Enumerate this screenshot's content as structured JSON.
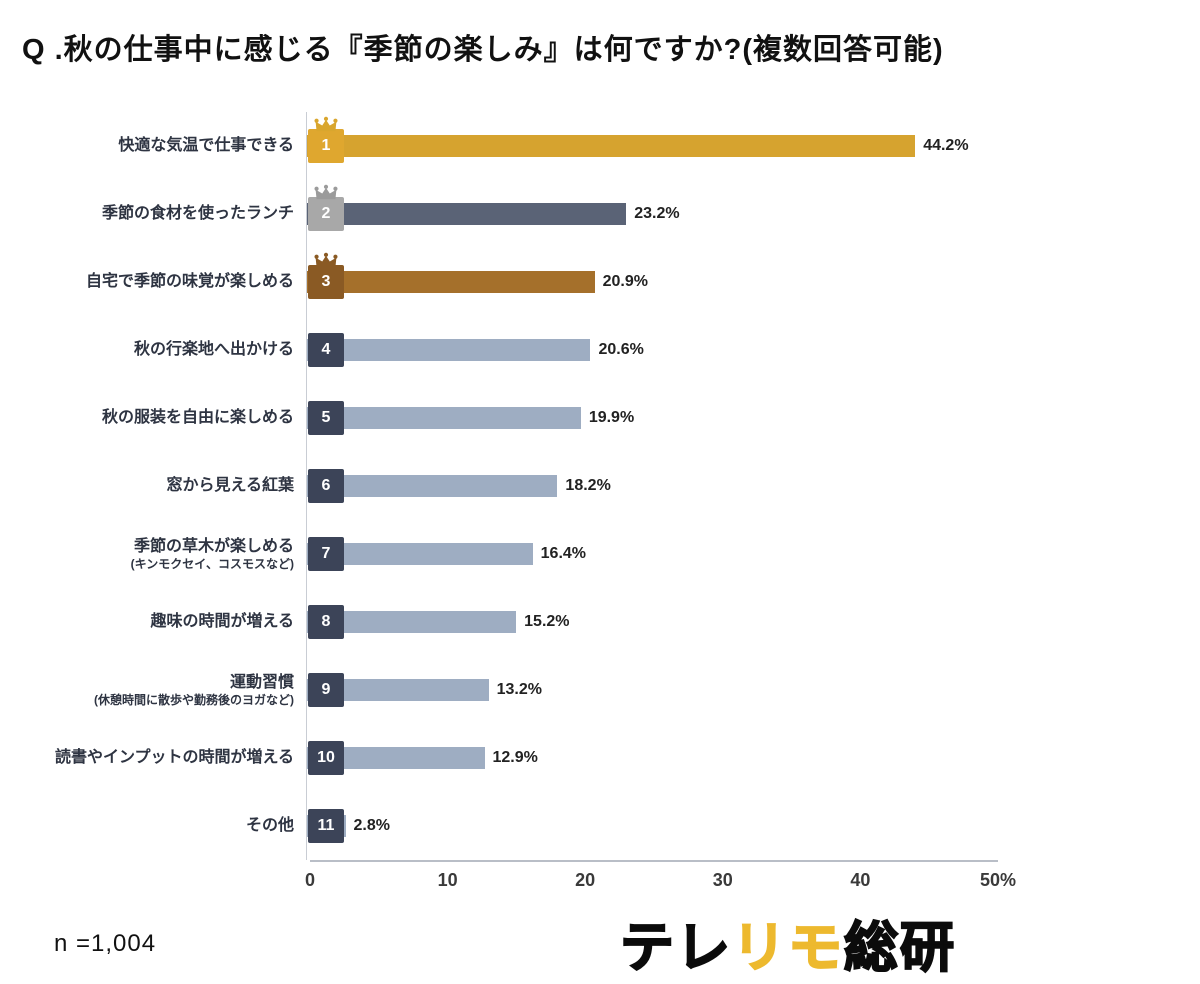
{
  "title": "Q .秋の仕事中に感じる『季節の楽しみ』は何ですか?(複数回答可能)",
  "sample_size": "n =1,004",
  "logo": {
    "black1": "テレ",
    "gold": "リモ",
    "black2": "総研"
  },
  "colors": {
    "bar_gold": "#D6A32F",
    "bar_slate": "#5A6376",
    "bar_bronze": "#A5702B",
    "bar_default": "#9EADC2",
    "badge_default": "#3C4458",
    "logo_gold": "#edb92e"
  },
  "chart_data": {
    "type": "bar",
    "orientation": "horizontal",
    "title": "Q .秋の仕事中に感じる『季節の楽しみ』は何ですか?(複数回答可能)",
    "xlim": [
      0,
      50
    ],
    "x_ticks": [
      "0",
      "10",
      "20",
      "30",
      "40",
      "50%"
    ],
    "grid": false,
    "categories": [
      "快適な気温で仕事できる",
      "季節の食材を使ったランチ",
      "自宅で季節の味覚が楽しめる",
      "秋の行楽地へ出かける",
      "秋の服装を自由に楽しめる",
      "窓から見える紅葉",
      "季節の草木が楽しめる",
      "趣味の時間が増える",
      "運動習慣",
      "読書やインプットの時間が増える",
      "その他"
    ],
    "sublabels": [
      "",
      "",
      "",
      "",
      "",
      "",
      "(キンモクセイ、コスモスなど)",
      "",
      "(休憩時間に散歩や勤務後のヨガなど)",
      "",
      ""
    ],
    "values": [
      44.2,
      23.2,
      20.9,
      20.6,
      19.9,
      18.2,
      16.4,
      15.2,
      13.2,
      12.9,
      2.8
    ],
    "value_labels": [
      "44.2%",
      "23.2%",
      "20.9%",
      "20.6%",
      "19.9%",
      "18.2%",
      "16.4%",
      "15.2%",
      "13.2%",
      "12.9%",
      "2.8%"
    ],
    "ranks": [
      "1",
      "2",
      "3",
      "4",
      "5",
      "6",
      "7",
      "8",
      "9",
      "10",
      "11"
    ],
    "bar_colors": [
      "#D6A32F",
      "#5A6376",
      "#A5702B",
      "#9EADC2",
      "#9EADC2",
      "#9EADC2",
      "#9EADC2",
      "#9EADC2",
      "#9EADC2",
      "#9EADC2",
      "#9EADC2"
    ],
    "badge_colors": [
      "#DFA72F",
      "#A8A8A8",
      "#8A5A24",
      "#3C4458",
      "#3C4458",
      "#3C4458",
      "#3C4458",
      "#3C4458",
      "#3C4458",
      "#3C4458",
      "#3C4458"
    ],
    "crown_colors": [
      "#D9A62E",
      "#9B9B9B",
      "#8A5A24",
      null,
      null,
      null,
      null,
      null,
      null,
      null,
      null
    ]
  }
}
